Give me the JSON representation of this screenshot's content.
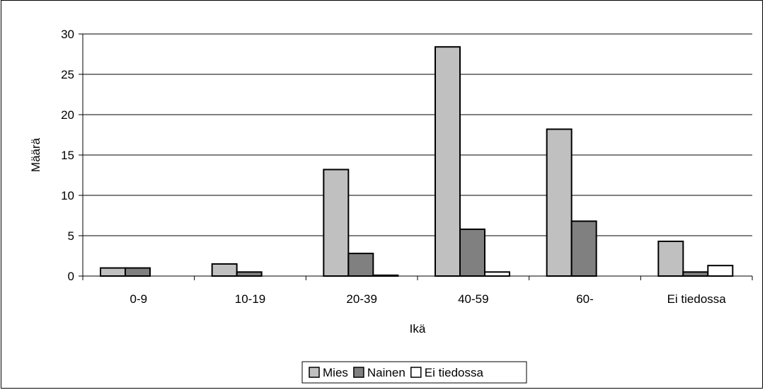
{
  "chart_data": {
    "type": "bar",
    "title": "",
    "xlabel": "Ikä",
    "ylabel": "Määrä",
    "categories": [
      "0-9",
      "10-19",
      "20-39",
      "40-59",
      "60-",
      "Ei tiedossa"
    ],
    "yticks": [
      "0",
      "5",
      "10",
      "15",
      "20",
      "25",
      "30"
    ],
    "ylim": [
      0,
      30
    ],
    "grid": true,
    "legend_position": "bottom",
    "series": [
      {
        "name": "Mies",
        "color": "#c0c0c0",
        "values": [
          1,
          1.5,
          13.2,
          28.4,
          18.2,
          4.3
        ]
      },
      {
        "name": "Nainen",
        "color": "#808080",
        "values": [
          1,
          0.5,
          2.8,
          5.8,
          6.8,
          0.5
        ]
      },
      {
        "name": "Ei tiedossa",
        "color": "#ffffff",
        "values": [
          0,
          0,
          0.1,
          0.5,
          0,
          1.3
        ]
      }
    ]
  }
}
